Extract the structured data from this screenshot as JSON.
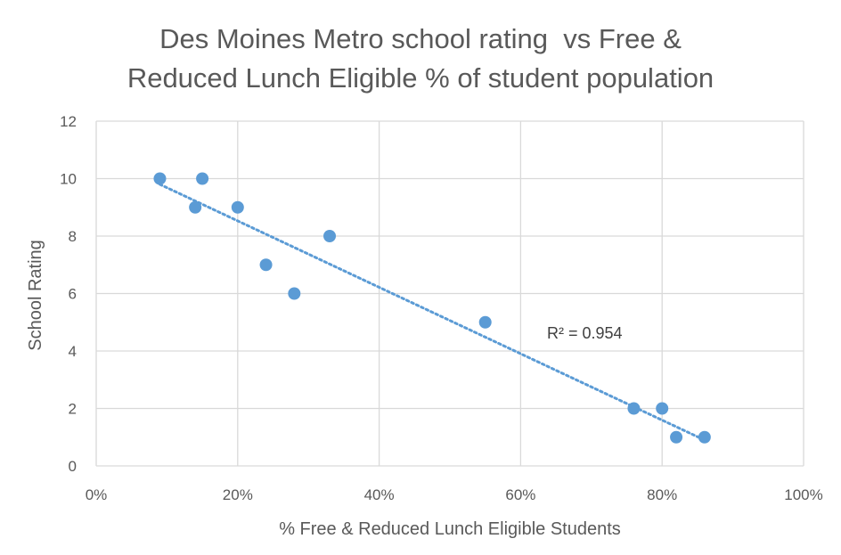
{
  "chart_data": {
    "type": "scatter",
    "title_lines": [
      "Des Moines Metro school rating  vs Free &",
      "Reduced Lunch Eligible % of student population"
    ],
    "xlabel": "% Free & Reduced Lunch Eligible Students",
    "ylabel": "School Rating",
    "xlim": [
      0,
      1
    ],
    "ylim": [
      0,
      12
    ],
    "x_ticks": [
      0,
      0.2,
      0.4,
      0.6,
      0.8,
      1.0
    ],
    "x_tick_labels": [
      "0%",
      "20%",
      "40%",
      "60%",
      "80%",
      "100%"
    ],
    "y_ticks": [
      0,
      2,
      4,
      6,
      8,
      10,
      12
    ],
    "y_tick_labels": [
      "0",
      "2",
      "4",
      "6",
      "8",
      "10",
      "12"
    ],
    "grid": true,
    "points": [
      {
        "x": 0.09,
        "y": 10
      },
      {
        "x": 0.15,
        "y": 10
      },
      {
        "x": 0.14,
        "y": 9
      },
      {
        "x": 0.2,
        "y": 9
      },
      {
        "x": 0.33,
        "y": 8
      },
      {
        "x": 0.24,
        "y": 7
      },
      {
        "x": 0.28,
        "y": 6
      },
      {
        "x": 0.55,
        "y": 5
      },
      {
        "x": 0.76,
        "y": 2
      },
      {
        "x": 0.8,
        "y": 2
      },
      {
        "x": 0.82,
        "y": 1
      },
      {
        "x": 0.86,
        "y": 1
      }
    ],
    "trendline": {
      "style": "dotted",
      "from": {
        "x": 0.09,
        "y": 9.8
      },
      "to": {
        "x": 0.86,
        "y": 0.9
      }
    },
    "annotation": "R² = 0.954",
    "colors": {
      "point": "#5b9bd5",
      "trendline": "#5b9bd5",
      "grid": "#d9d9d9",
      "text": "#595959"
    }
  }
}
